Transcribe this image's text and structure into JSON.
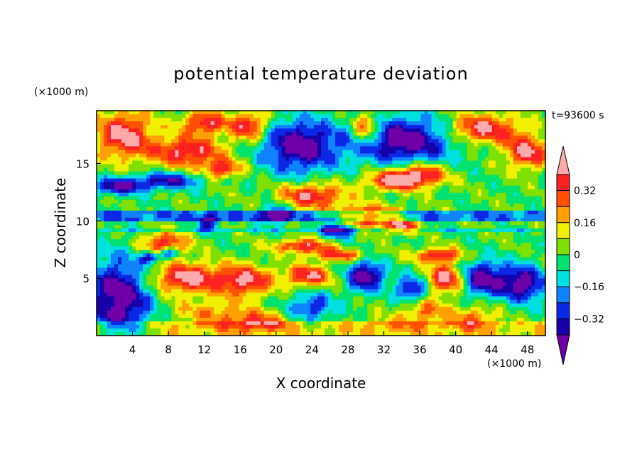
{
  "chart_data": {
    "type": "heatmap",
    "title": "potential temperature deviation",
    "xlabel": "X coordinate",
    "ylabel": "Z coordinate",
    "x_unit": "(×1000 m)",
    "y_unit": "(×1000 m)",
    "time_label": "t=93600 s",
    "xlim": [
      0,
      50
    ],
    "ylim": [
      0,
      19.6
    ],
    "x_ticks": [
      4,
      8,
      12,
      16,
      20,
      24,
      28,
      32,
      36,
      40,
      44,
      48
    ],
    "y_ticks": [
      5,
      10,
      15
    ],
    "colorbar": {
      "levels": [
        -0.4,
        -0.32,
        -0.24,
        -0.16,
        -0.08,
        0,
        0.08,
        0.16,
        0.24,
        0.32,
        0.4
      ],
      "labels": [
        "0.32",
        "0.16",
        "0",
        "−0.16",
        "−0.32"
      ],
      "label_values": [
        0.32,
        0.16,
        0,
        -0.16,
        -0.32
      ],
      "colors": [
        "#6f00a8",
        "#1800a8",
        "#0a28e6",
        "#0f82ff",
        "#00e0e0",
        "#00e36e",
        "#80e000",
        "#f0f000",
        "#ffa000",
        "#ff5000",
        "#ff2020",
        "#ffabab"
      ]
    },
    "blobs": [
      {
        "x": 3,
        "z": 17.5,
        "rx": 3.2,
        "rz": 2.0,
        "v": 0.45
      },
      {
        "x": 10,
        "z": 16,
        "rx": 4.0,
        "rz": 1.3,
        "v": 0.42
      },
      {
        "x": 12,
        "z": 18.5,
        "rx": 2.5,
        "rz": 1.0,
        "v": 0.4
      },
      {
        "x": 17,
        "z": 18.3,
        "rx": 2.0,
        "rz": 1.2,
        "v": 0.42
      },
      {
        "x": 22.5,
        "z": 16.5,
        "rx": 4.0,
        "rz": 2.2,
        "v": -0.48
      },
      {
        "x": 30,
        "z": 18,
        "rx": 1.6,
        "rz": 1.4,
        "v": 0.42
      },
      {
        "x": 34,
        "z": 17,
        "rx": 6.0,
        "rz": 2.0,
        "v": -0.48
      },
      {
        "x": 43,
        "z": 18,
        "rx": 4.0,
        "rz": 1.3,
        "v": 0.45
      },
      {
        "x": 48,
        "z": 16,
        "rx": 2.5,
        "rz": 1.4,
        "v": 0.42
      },
      {
        "x": 36,
        "z": 14,
        "rx": 3.0,
        "rz": 1.0,
        "v": 0.42
      },
      {
        "x": 2.5,
        "z": 13,
        "rx": 3.0,
        "rz": 0.7,
        "v": -0.42
      },
      {
        "x": 8,
        "z": 13.5,
        "rx": 3.5,
        "rz": 0.7,
        "v": -0.38
      },
      {
        "x": 14,
        "z": 14.5,
        "rx": 2.0,
        "rz": 0.8,
        "v": 0.36
      },
      {
        "x": 24,
        "z": 12.2,
        "rx": 3.5,
        "rz": 1.0,
        "v": 0.42
      },
      {
        "x": 33,
        "z": 13.5,
        "rx": 3.0,
        "rz": 0.8,
        "v": 0.4
      },
      {
        "x": 30,
        "z": 10.3,
        "rx": 4.0,
        "rz": 1.0,
        "v": 0.45
      },
      {
        "x": 27,
        "z": 9.3,
        "rx": 2.0,
        "rz": 0.8,
        "v": -0.45
      },
      {
        "x": 20,
        "z": 10.5,
        "rx": 1.5,
        "rz": 0.8,
        "v": -0.4
      },
      {
        "x": 12.5,
        "z": 9.8,
        "rx": 1.2,
        "rz": 0.6,
        "v": -0.38
      },
      {
        "x": 34,
        "z": 9.5,
        "rx": 1.5,
        "rz": 0.6,
        "v": 0.35
      },
      {
        "x": 7.5,
        "z": 8.0,
        "rx": 2.5,
        "rz": 1.0,
        "v": 0.4
      },
      {
        "x": 8,
        "z": 7.2,
        "rx": 1.0,
        "rz": 0.5,
        "v": -0.4
      },
      {
        "x": 6,
        "z": 6.8,
        "rx": 1.0,
        "rz": 0.5,
        "v": -0.4
      },
      {
        "x": 23,
        "z": 7.8,
        "rx": 3.0,
        "rz": 0.6,
        "v": 0.4
      },
      {
        "x": 27,
        "z": 7.0,
        "rx": 3.0,
        "rz": 0.5,
        "v": 0.35
      },
      {
        "x": 38,
        "z": 7.0,
        "rx": 2.5,
        "rz": 0.6,
        "v": 0.38
      },
      {
        "x": 2.5,
        "z": 3.2,
        "rx": 3.5,
        "rz": 3.5,
        "v": -0.5
      },
      {
        "x": 10,
        "z": 5.0,
        "rx": 4.0,
        "rz": 1.3,
        "v": 0.45
      },
      {
        "x": 16.5,
        "z": 4.8,
        "rx": 3.0,
        "rz": 1.3,
        "v": 0.42
      },
      {
        "x": 13,
        "z": 2.0,
        "rx": 4.5,
        "rz": 1.2,
        "v": 0.2
      },
      {
        "x": 18,
        "z": 1.2,
        "rx": 3.5,
        "rz": 0.8,
        "v": 0.3
      },
      {
        "x": 23.5,
        "z": 5.2,
        "rx": 2.5,
        "rz": 0.9,
        "v": 0.42
      },
      {
        "x": 24,
        "z": 2.5,
        "rx": 2.5,
        "rz": 1.2,
        "v": -0.3
      },
      {
        "x": 30,
        "z": 5.2,
        "rx": 2.0,
        "rz": 1.3,
        "v": -0.48
      },
      {
        "x": 36.5,
        "z": 2.0,
        "rx": 2.5,
        "rz": 1.2,
        "v": 0.25
      },
      {
        "x": 35,
        "z": 4.0,
        "rx": 1.6,
        "rz": 1.0,
        "v": -0.4
      },
      {
        "x": 39,
        "z": 5.0,
        "rx": 2.0,
        "rz": 1.3,
        "v": 0.45
      },
      {
        "x": 43,
        "z": 5.0,
        "rx": 2.5,
        "rz": 1.5,
        "v": -0.45
      },
      {
        "x": 47.5,
        "z": 4.5,
        "rx": 2.5,
        "rz": 1.5,
        "v": -0.48
      },
      {
        "x": 42,
        "z": 1.5,
        "rx": 2.5,
        "rz": 1.0,
        "v": 0.25
      },
      {
        "x": 32,
        "z": 1.0,
        "rx": 3.0,
        "rz": 0.8,
        "v": 0.1
      }
    ]
  }
}
